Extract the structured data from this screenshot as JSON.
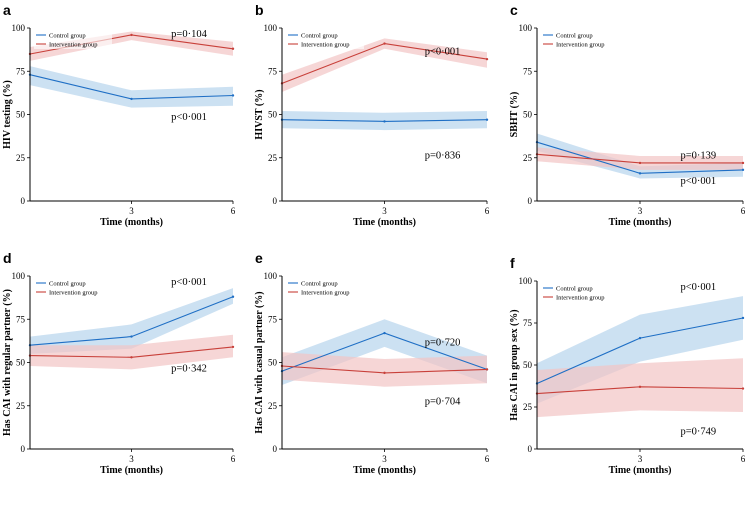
{
  "chart_data": [
    {
      "type": "line",
      "panel": "a",
      "ylabel": "HIV testing (%)",
      "xlabel": "Time (months)",
      "ylim": [
        0,
        100
      ],
      "yticks": [
        0,
        25,
        50,
        75,
        100
      ],
      "x": [
        0,
        3,
        6
      ],
      "xticks": [
        3,
        6
      ],
      "legend_position": "top-left",
      "series": [
        {
          "name": "Control group",
          "color": "#1f6fc5",
          "band": "#b7d4ec",
          "values": [
            73,
            59,
            61
          ],
          "lower": [
            67,
            54,
            55
          ],
          "upper": [
            78,
            64,
            66
          ]
        },
        {
          "name": "Intervention group",
          "color": "#c8403a",
          "band": "#f2c5c5",
          "values": [
            85,
            96,
            88
          ],
          "lower": [
            81,
            93,
            84
          ],
          "upper": [
            89,
            98,
            92
          ]
        }
      ],
      "annotations": [
        {
          "text": "p=0·104",
          "x": 4.7,
          "y": 97
        },
        {
          "text": "p<0·001",
          "x": 4.7,
          "y": 49
        }
      ]
    },
    {
      "type": "line",
      "panel": "b",
      "ylabel": "HIVST (%)",
      "xlabel": "Time (months)",
      "ylim": [
        0,
        100
      ],
      "yticks": [
        0,
        25,
        50,
        75,
        100
      ],
      "x": [
        0,
        3,
        6
      ],
      "xticks": [
        3,
        6
      ],
      "legend_position": "top-left",
      "series": [
        {
          "name": "Control group",
          "color": "#1f6fc5",
          "band": "#b7d4ec",
          "values": [
            47,
            46,
            47
          ],
          "lower": [
            42,
            41,
            42
          ],
          "upper": [
            52,
            51,
            52
          ]
        },
        {
          "name": "Intervention group",
          "color": "#c8403a",
          "band": "#f2c5c5",
          "values": [
            68,
            91,
            82
          ],
          "lower": [
            63,
            88,
            77
          ],
          "upper": [
            73,
            94,
            86
          ]
        }
      ],
      "annotations": [
        {
          "text": "p<0·001",
          "x": 4.7,
          "y": 87
        },
        {
          "text": "p=0·836",
          "x": 4.7,
          "y": 27
        }
      ]
    },
    {
      "type": "line",
      "panel": "c",
      "ylabel": "SBHT (%)",
      "xlabel": "Time (months)",
      "ylim": [
        0,
        100
      ],
      "yticks": [
        0,
        25,
        50,
        75,
        100
      ],
      "x": [
        0,
        3,
        6
      ],
      "xticks": [
        3,
        6
      ],
      "legend_position": "top-left",
      "series": [
        {
          "name": "Control group",
          "color": "#1f6fc5",
          "band": "#b7d4ec",
          "values": [
            34,
            16,
            18
          ],
          "lower": [
            29,
            13,
            14
          ],
          "upper": [
            39,
            20,
            22
          ]
        },
        {
          "name": "Intervention group",
          "color": "#c8403a",
          "band": "#f2c5c5",
          "values": [
            27,
            22,
            22
          ],
          "lower": [
            23,
            18,
            18
          ],
          "upper": [
            31,
            26,
            26
          ]
        }
      ],
      "annotations": [
        {
          "text": "p=0·139",
          "x": 4.7,
          "y": 27
        },
        {
          "text": "p<0·001",
          "x": 4.7,
          "y": 12
        }
      ]
    },
    {
      "type": "line",
      "panel": "d",
      "ylabel": "Has CAI with regular partner (%)",
      "xlabel": "Time (months)",
      "ylim": [
        0,
        100
      ],
      "yticks": [
        0,
        25,
        50,
        75,
        100
      ],
      "x": [
        0,
        3,
        6
      ],
      "xticks": [
        3,
        6
      ],
      "legend_position": "top-left",
      "series": [
        {
          "name": "Control group",
          "color": "#1f6fc5",
          "band": "#b7d4ec",
          "values": [
            60,
            65,
            88
          ],
          "lower": [
            55,
            58,
            84
          ],
          "upper": [
            65,
            72,
            93
          ]
        },
        {
          "name": "Intervention group",
          "color": "#c8403a",
          "band": "#f2c5c5",
          "values": [
            54,
            53,
            59
          ],
          "lower": [
            48,
            46,
            53
          ],
          "upper": [
            60,
            60,
            66
          ]
        }
      ],
      "annotations": [
        {
          "text": "p<0·001",
          "x": 4.7,
          "y": 97
        },
        {
          "text": "p=0·342",
          "x": 4.7,
          "y": 47
        }
      ]
    },
    {
      "type": "line",
      "panel": "e",
      "ylabel": "Has CAI with casual partner (%)",
      "xlabel": "Time (months)",
      "ylim": [
        0,
        100
      ],
      "yticks": [
        0,
        25,
        50,
        75,
        100
      ],
      "x": [
        0,
        3,
        6
      ],
      "xticks": [
        3,
        6
      ],
      "legend_position": "top-left",
      "series": [
        {
          "name": "Control group",
          "color": "#1f6fc5",
          "band": "#b7d4ec",
          "values": [
            45,
            67,
            46
          ],
          "lower": [
            37,
            59,
            38
          ],
          "upper": [
            53,
            75,
            54
          ]
        },
        {
          "name": "Intervention group",
          "color": "#c8403a",
          "band": "#f2c5c5",
          "values": [
            48,
            44,
            46
          ],
          "lower": [
            40,
            36,
            38
          ],
          "upper": [
            56,
            52,
            54
          ]
        }
      ],
      "annotations": [
        {
          "text": "p=0·720",
          "x": 4.7,
          "y": 62
        },
        {
          "text": "p=0·704",
          "x": 4.7,
          "y": 28
        }
      ]
    },
    {
      "type": "line",
      "panel": "f",
      "ylabel": "Has CAI in group sex (%)",
      "xlabel": "Time (months)",
      "ylim": [
        0,
        100
      ],
      "yticks": [
        0,
        25,
        50,
        75,
        100
      ],
      "x": [
        0,
        3,
        6
      ],
      "xticks": [
        3,
        6
      ],
      "legend_position": "top-left",
      "series": [
        {
          "name": "Control group",
          "color": "#1f6fc5",
          "band": "#b7d4ec",
          "values": [
            39,
            66,
            78
          ],
          "lower": [
            27,
            52,
            65
          ],
          "upper": [
            51,
            80,
            91
          ]
        },
        {
          "name": "Intervention group",
          "color": "#c8403a",
          "band": "#f2c5c5",
          "values": [
            33,
            37,
            36
          ],
          "lower": [
            19,
            23,
            22
          ],
          "upper": [
            47,
            51,
            54
          ]
        }
      ],
      "annotations": [
        {
          "text": "p<0·001",
          "x": 4.7,
          "y": 97
        },
        {
          "text": "p=0·749",
          "x": 4.7,
          "y": 11
        }
      ]
    }
  ]
}
